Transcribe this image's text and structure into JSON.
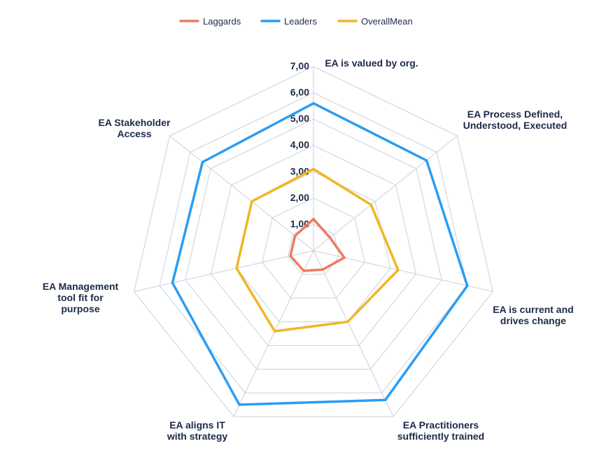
{
  "chart_data": {
    "type": "radar",
    "title": "",
    "axes": [
      "EA is valued by org.",
      "EA Process Defined, Understood, Executed",
      "EA is current and drives change",
      "EA Practitioners sufficiently trained",
      "EA aligns IT with strategy",
      "EA Management tool fit for purpose",
      "EA Stakeholder Access"
    ],
    "axis_label_lines": [
      [
        "EA is valued by org."
      ],
      [
        "EA Process Defined,",
        "Understood, Executed"
      ],
      [
        "EA is current and",
        "drives change"
      ],
      [
        "EA Practitioners",
        "sufficiently trained"
      ],
      [
        "EA aligns IT",
        "with strategy"
      ],
      [
        "EA Management",
        "tool fit for",
        "purpose"
      ],
      [
        "EA Stakeholder",
        "Access"
      ]
    ],
    "rlim": [
      0,
      7
    ],
    "ticks": [
      1,
      2,
      3,
      4,
      5,
      6,
      7
    ],
    "tick_labels": [
      "1,00",
      "2,00",
      "3,00",
      "4,00",
      "5,00",
      "6,00",
      "7,00"
    ],
    "grid": true,
    "legend_position": "top",
    "series": [
      {
        "name": "Laggards",
        "color": "#f07a63",
        "values": [
          1.2,
          0.8,
          1.2,
          0.8,
          0.85,
          0.9,
          0.9
        ]
      },
      {
        "name": "Leaders",
        "color": "#2b9df4",
        "values": [
          5.6,
          5.5,
          6.0,
          6.3,
          6.5,
          5.5,
          5.4
        ]
      },
      {
        "name": "OverallMean",
        "color": "#f0b624",
        "values": [
          3.1,
          2.8,
          3.3,
          3.0,
          3.4,
          3.0,
          3.0
        ]
      }
    ]
  }
}
